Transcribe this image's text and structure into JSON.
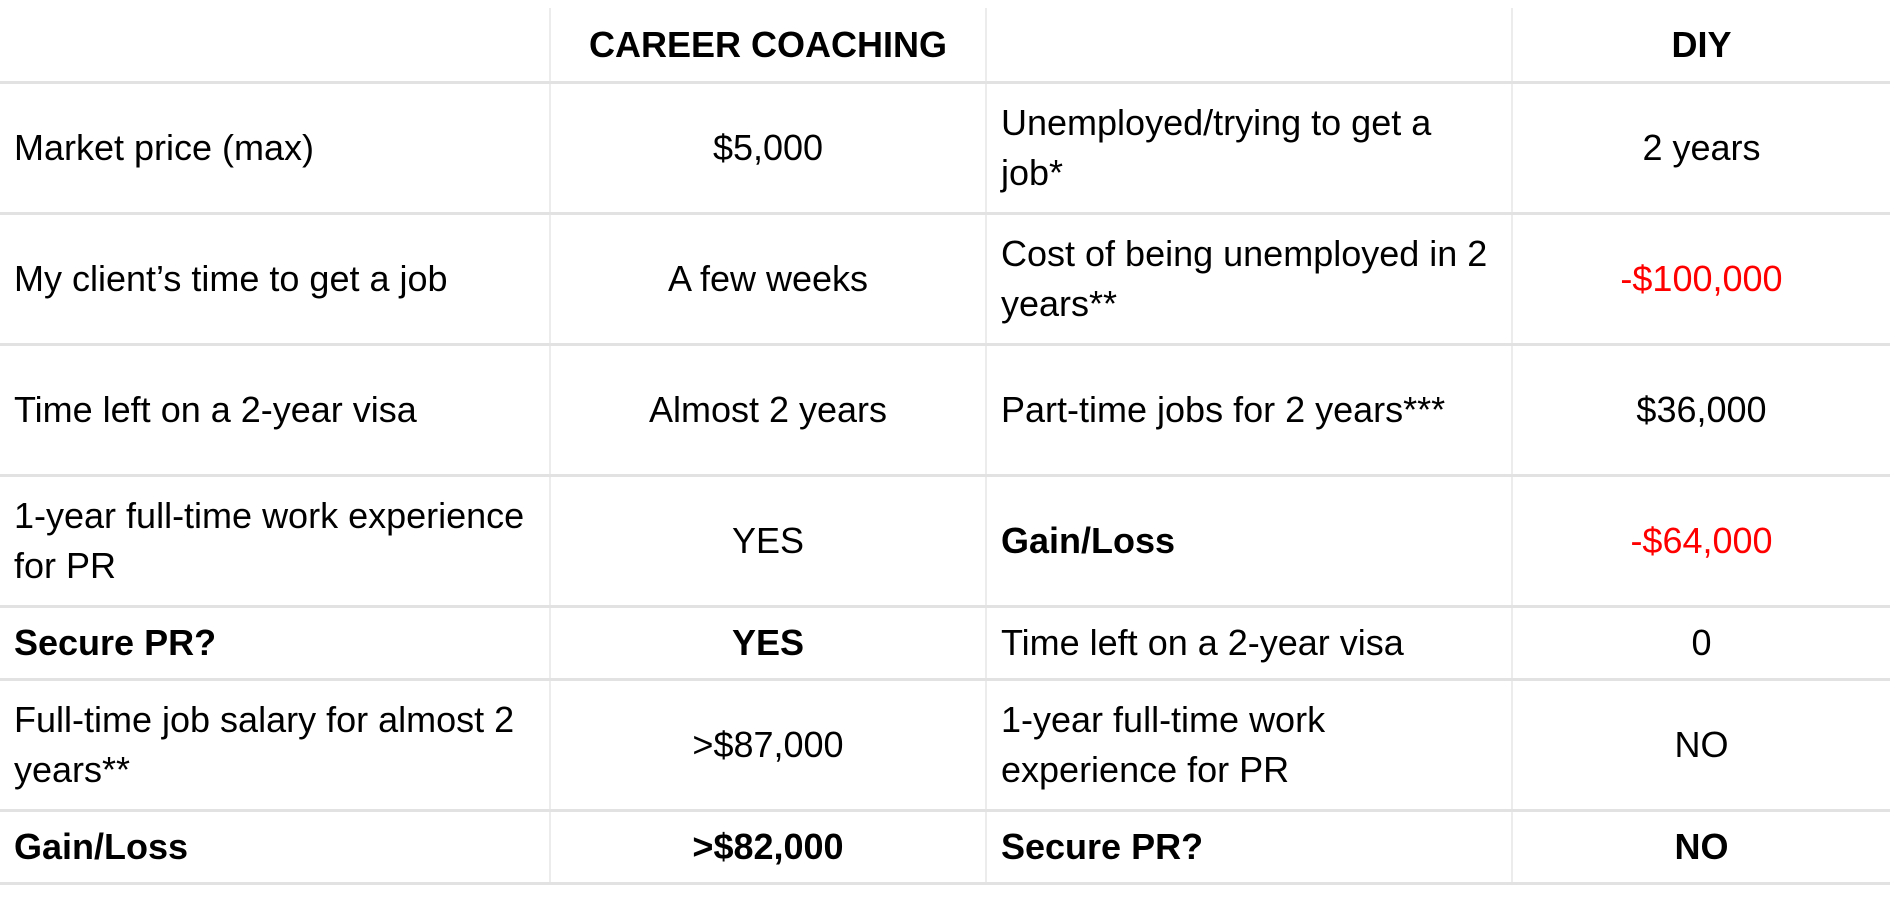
{
  "header": {
    "col1": "",
    "col2": "CAREER COACHING",
    "col3": "",
    "col4": "DIY"
  },
  "rows": [
    {
      "label": "Market price (max)",
      "coaching": "$5,000",
      "diy_label": "Unemployed/trying to get a job*",
      "diy_value": "2 years"
    },
    {
      "label": "My client’s time to get a job",
      "coaching": "A few weeks",
      "diy_label": "Cost of being unemployed in 2 years**",
      "diy_value": "-$100,000"
    },
    {
      "label": "Time left on a 2-year visa",
      "coaching": "Almost 2 years",
      "diy_label": "Part-time jobs for 2 years***",
      "diy_value": "$36,000"
    },
    {
      "label": "1-year full-time work experience for PR",
      "coaching": "YES",
      "diy_label": "Gain/Loss",
      "diy_value": "-$64,000"
    },
    {
      "label": "Secure PR?",
      "coaching": "YES",
      "diy_label": "Time left on a 2-year visa",
      "diy_value": "0"
    },
    {
      "label": "Full-time job salary for almost 2 years**",
      "coaching": ">$87,000",
      "diy_label": "1-year full-time work experience for PR",
      "diy_value": "NO"
    },
    {
      "label": "Gain/Loss",
      "coaching": ">$82,000",
      "diy_label": "Secure PR?",
      "diy_value": "NO"
    }
  ],
  "colors": {
    "negative": "#ff0000",
    "grid": "#e2e2e2"
  }
}
